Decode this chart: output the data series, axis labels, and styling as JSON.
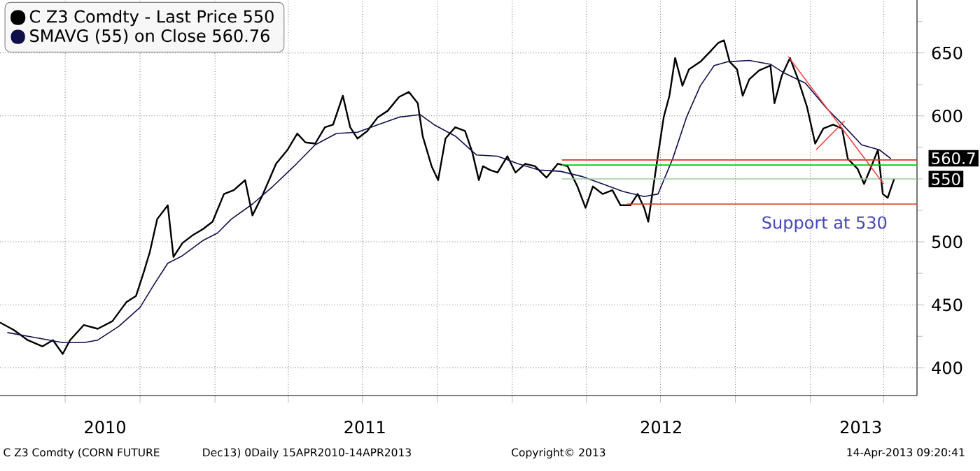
{
  "chart_data": {
    "type": "line",
    "xlim": [
      "2010-04-12",
      "2013-05-12"
    ],
    "xticks": [
      {
        "value": "2010-07-01",
        "label": null
      },
      {
        "value": "2010-10-01",
        "label": null
      },
      {
        "value": "2011-01-01",
        "label": null
      },
      {
        "value": "2011-04-01",
        "label": null
      },
      {
        "value": "2011-07-01",
        "label": null
      },
      {
        "value": "2011-10-01",
        "label": null
      },
      {
        "value": "2012-01-01",
        "label": null
      },
      {
        "value": "2012-04-01",
        "label": null
      },
      {
        "value": "2012-07-01",
        "label": null
      },
      {
        "value": "2012-10-01",
        "label": null
      },
      {
        "value": "2013-01-01",
        "label": null
      },
      {
        "value": "2013-04-01",
        "label": null
      },
      {
        "value": "2010-08-19",
        "label": "2010"
      },
      {
        "value": "2011-07-04",
        "label": "2011"
      },
      {
        "value": "2012-07-02",
        "label": "2012"
      },
      {
        "value": "2013-03-04",
        "label": "2013"
      }
    ],
    "ylim": [
      378,
      692
    ],
    "yticks": [
      400,
      {
        "value": 425,
        "label": null
      },
      450,
      {
        "value": 475,
        "label": null
      },
      500,
      {
        "value": 525,
        "label": null
      },
      {
        "value": 550,
        "label": null
      },
      {
        "value": 575,
        "label": null
      },
      600,
      {
        "value": 625,
        "label": null
      },
      650,
      {
        "value": 675,
        "label": null
      }
    ],
    "grid": true,
    "legend": "top left",
    "series": [
      {
        "name": "C Z3 Comdty - Last Price 550",
        "color": "#000000",
        "x": [
          "2010-04-12",
          "2010-04-29",
          "2010-05-16",
          "2010-06-03",
          "2010-06-16",
          "2010-06-28",
          "2010-07-07",
          "2010-07-24",
          "2010-08-10",
          "2010-08-28",
          "2010-09-14",
          "2010-09-26",
          "2010-10-06",
          "2010-10-13",
          "2010-10-22",
          "2010-11-04",
          "2010-11-11",
          "2010-11-22",
          "2010-12-04",
          "2010-12-17",
          "2010-12-29",
          "2011-01-12",
          "2011-01-24",
          "2011-02-07",
          "2011-02-16",
          "2011-03-01",
          "2011-03-17",
          "2011-03-31",
          "2011-04-12",
          "2011-04-22",
          "2011-05-04",
          "2011-05-16",
          "2011-05-26",
          "2011-06-07",
          "2011-06-16",
          "2011-06-25",
          "2011-07-07",
          "2011-07-20",
          "2011-08-01",
          "2011-08-15",
          "2011-08-27",
          "2011-09-07",
          "2011-09-13",
          "2011-09-24",
          "2011-10-02",
          "2011-10-11",
          "2011-10-23",
          "2011-11-04",
          "2011-11-13",
          "2011-11-21",
          "2011-11-26",
          "2011-12-05",
          "2011-12-14",
          "2011-12-26",
          "2012-01-05",
          "2012-01-17",
          "2012-01-29",
          "2012-02-12",
          "2012-02-26",
          "2012-03-09",
          "2012-03-21",
          "2012-03-31",
          "2012-04-09",
          "2012-04-21",
          "2012-05-03",
          "2012-05-13",
          "2012-05-25",
          "2012-06-03",
          "2012-06-11",
          "2012-06-16",
          "2012-06-23",
          "2012-06-28",
          "2012-07-05",
          "2012-07-12",
          "2012-07-19",
          "2012-07-28",
          "2012-08-05",
          "2012-08-19",
          "2012-08-31",
          "2012-09-10",
          "2012-09-17",
          "2012-09-24",
          "2012-10-03",
          "2012-10-10",
          "2012-10-18",
          "2012-10-30",
          "2012-11-13",
          "2012-11-18",
          "2012-11-27",
          "2012-12-07",
          "2012-12-17",
          "2012-12-28",
          "2013-01-07",
          "2013-01-17",
          "2013-01-29",
          "2013-02-09",
          "2013-02-16",
          "2013-02-28",
          "2013-03-08",
          "2013-03-17",
          "2013-03-25",
          "2013-03-31",
          "2013-04-06",
          "2013-04-14"
        ],
        "values": [
          436,
          430,
          422,
          417,
          422,
          411,
          422,
          434,
          431,
          437,
          452,
          457,
          477,
          492,
          518,
          529,
          488,
          499,
          505,
          510,
          516,
          538,
          541,
          549,
          521,
          538,
          562,
          573,
          586,
          579,
          578,
          591,
          593,
          616,
          591,
          582,
          588,
          599,
          604,
          615,
          619,
          610,
          584,
          560,
          549,
          582,
          591,
          588,
          571,
          549,
          560,
          557,
          555,
          568,
          555,
          562,
          560,
          551,
          562,
          560,
          544,
          527,
          544,
          538,
          541,
          529,
          529,
          538,
          527,
          516,
          547,
          569,
          599,
          616,
          646,
          624,
          637,
          643,
          651,
          658,
          660,
          643,
          637,
          616,
          629,
          636,
          640,
          610,
          632,
          646,
          629,
          607,
          578,
          590,
          593,
          590,
          566,
          558,
          546,
          560,
          573,
          538,
          535,
          550
        ]
      },
      {
        "name": "SMAVG (55) on Close 560.76",
        "color": "#10104a",
        "x": [
          "2010-04-21",
          "2010-05-25",
          "2010-06-28",
          "2010-07-24",
          "2010-08-10",
          "2010-09-05",
          "2010-10-01",
          "2010-10-18",
          "2010-11-04",
          "2010-11-22",
          "2010-12-17",
          "2011-01-04",
          "2011-01-21",
          "2011-02-16",
          "2011-03-13",
          "2011-04-08",
          "2011-05-04",
          "2011-05-30",
          "2011-06-25",
          "2011-07-20",
          "2011-08-15",
          "2011-09-10",
          "2011-09-27",
          "2011-10-23",
          "2011-11-18",
          "2011-12-14",
          "2012-01-08",
          "2012-02-03",
          "2012-02-29",
          "2012-03-26",
          "2012-04-21",
          "2012-05-16",
          "2012-06-11",
          "2012-06-28",
          "2012-07-16",
          "2012-08-02",
          "2012-08-19",
          "2012-09-05",
          "2012-09-22",
          "2012-10-18",
          "2012-11-13",
          "2012-11-30",
          "2012-12-26",
          "2013-01-21",
          "2013-02-07",
          "2013-03-05",
          "2013-03-27",
          "2013-04-10"
        ],
        "values": [
          428,
          424,
          420,
          420,
          422,
          433,
          448,
          466,
          483,
          489,
          501,
          507,
          518,
          530,
          544,
          560,
          577,
          586,
          587,
          593,
          599,
          601,
          593,
          584,
          569,
          568,
          562,
          557,
          556,
          552,
          546,
          540,
          536,
          538,
          566,
          599,
          624,
          640,
          643,
          644,
          641,
          634,
          626,
          606,
          595,
          577,
          573,
          566
        ]
      },
      {
        "color": "#e03020",
        "x": [
          "2012-03-02",
          "2013-05-12"
        ],
        "values": [
          565,
          565
        ]
      },
      {
        "color": "#00cc00",
        "x": [
          "2012-03-02",
          "2013-05-12"
        ],
        "values": [
          561,
          561
        ]
      },
      {
        "color": "#99cc99",
        "x": [
          "2012-03-02",
          "2013-05-12"
        ],
        "values": [
          550,
          550
        ]
      },
      {
        "color": "#e03020",
        "x": [
          "2012-05-21",
          "2013-05-12"
        ],
        "values": [
          530,
          530
        ]
      },
      {
        "color": "#f04040",
        "x": [
          "2012-12-05",
          "2013-04-01"
        ],
        "values": [
          647,
          546
        ]
      },
      {
        "color": "#f04040",
        "x": [
          "2013-01-08",
          "2013-02-12"
        ],
        "values": [
          573,
          596
        ]
      }
    ],
    "annotations": [
      "C Z3 Comdty (CORN FUTURE",
      "Dec13) 0Daily 15APR2010-14APR2013",
      "Copyright© 2013",
      "14-Apr-2013 09:20:41",
      "Support at 530",
      {
        "text": "560.7",
        "x": "2013-05-12",
        "y": 561
      },
      {
        "text": "550",
        "x": "2013-05-12",
        "y": 550
      }
    ]
  }
}
